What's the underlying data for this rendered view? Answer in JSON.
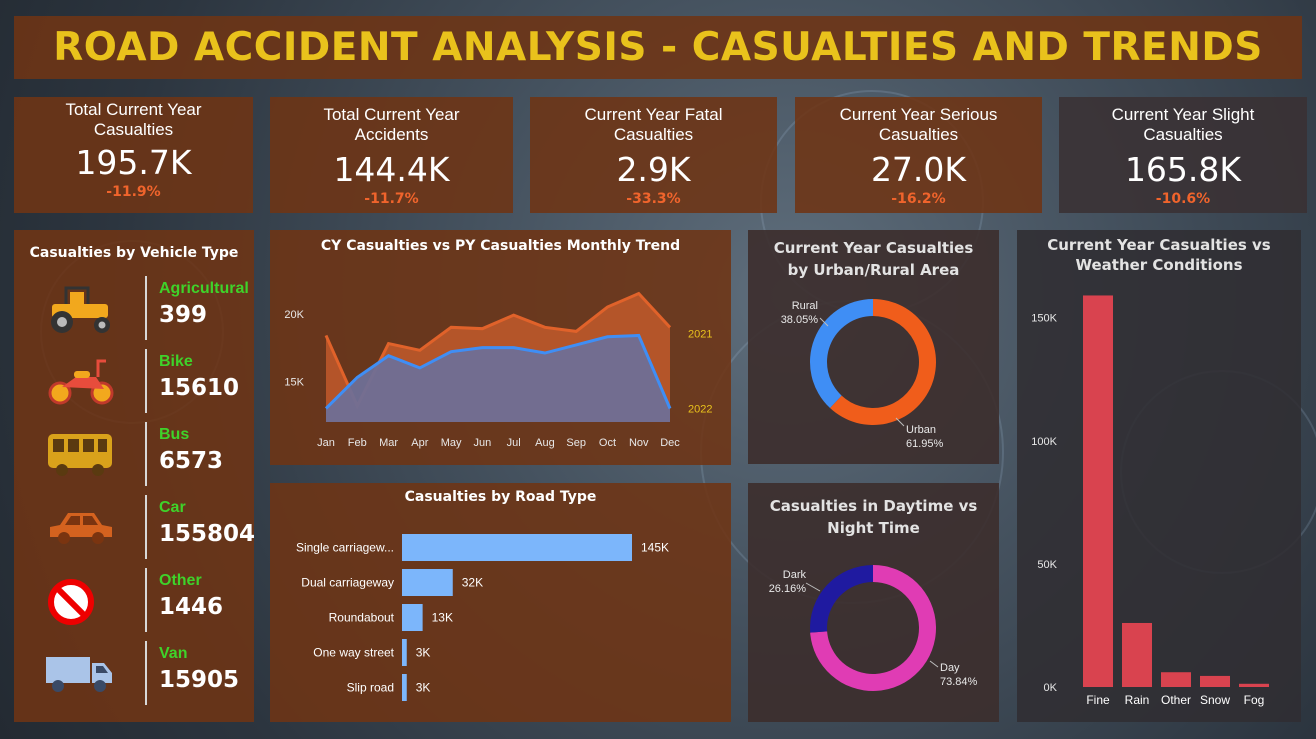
{
  "header": {
    "title": "ROAD ACCIDENT ANALYSIS - CASUALTIES AND TRENDS"
  },
  "kpis": [
    {
      "label": "Total Current Year Casualties",
      "value": "195.7K",
      "change": "-11.9%"
    },
    {
      "label": "Total Current Year Accidents",
      "value": "144.4K",
      "change": "-11.7%"
    },
    {
      "label": "Current Year Fatal Casualties",
      "value": "2.9K",
      "change": "-33.3%"
    },
    {
      "label": "Current Year Serious Casualties",
      "value": "27.0K",
      "change": "-16.2%"
    },
    {
      "label": "Current Year Slight Casualties",
      "value": "165.8K",
      "change": "-10.6%"
    }
  ],
  "vehicle_panel": {
    "title": "Casualties by Vehicle Type",
    "items": [
      {
        "name": "Agricultural",
        "value": "399",
        "icon": "tractor-icon"
      },
      {
        "name": "Bike",
        "value": "15610",
        "icon": "motorbike-icon"
      },
      {
        "name": "Bus",
        "value": "6573",
        "icon": "bus-icon"
      },
      {
        "name": "Car",
        "value": "155804",
        "icon": "car-icon"
      },
      {
        "name": "Other",
        "value": "1446",
        "icon": "prohibited-icon"
      },
      {
        "name": "Van",
        "value": "15905",
        "icon": "van-icon"
      }
    ],
    "name_color": "#3fd22a"
  },
  "chart_data": [
    {
      "id": "monthly",
      "type": "area",
      "title": "CY Casualties vs PY Casualties Monthly Trend",
      "categories": [
        "Jan",
        "Feb",
        "Mar",
        "Apr",
        "May",
        "Jun",
        "Jul",
        "Aug",
        "Sep",
        "Oct",
        "Nov",
        "Dec"
      ],
      "series": [
        {
          "name": "2021",
          "values": [
            18400,
            13200,
            17800,
            17300,
            19000,
            18900,
            19900,
            19000,
            18700,
            20500,
            21500,
            19000
          ],
          "color": "#e0622a"
        },
        {
          "name": "2022",
          "values": [
            13000,
            15300,
            16900,
            16000,
            17200,
            17500,
            17500,
            17100,
            17700,
            18300,
            18400,
            13000
          ],
          "color": "#3f8ef5"
        }
      ],
      "ylim": [
        12000,
        22500
      ],
      "yticks": [
        15000,
        20000
      ],
      "ytick_labels": [
        "15K",
        "20K"
      ]
    },
    {
      "id": "urban",
      "type": "pie",
      "title": "Current Year Casualties by Urban/Rural Area",
      "labels": [
        "Urban",
        "Rural"
      ],
      "values": [
        61.95,
        38.05
      ],
      "value_labels": [
        "61.95%",
        "38.05%"
      ],
      "colors": [
        "#f05d1b",
        "#3f8ef5"
      ]
    },
    {
      "id": "road",
      "type": "bar",
      "title": "Casualties by Road Type",
      "categories": [
        "Single carriagew...",
        "Dual carriageway",
        "Roundabout",
        "One way street",
        "Slip road"
      ],
      "values": [
        145000,
        32000,
        13000,
        3000,
        3000
      ],
      "value_labels": [
        "145K",
        "32K",
        "13K",
        "3K",
        "3K"
      ],
      "color": "#7cb6fb"
    },
    {
      "id": "daynight",
      "type": "pie",
      "title": "Casualties in Daytime vs Night Time",
      "labels": [
        "Day",
        "Dark"
      ],
      "values": [
        73.84,
        26.16
      ],
      "value_labels": [
        "73.84%",
        "26.16%"
      ],
      "colors": [
        "#e03cb4",
        "#1f1aa0"
      ]
    },
    {
      "id": "weather",
      "type": "bar",
      "title": "Current Year Casualties vs Weather Conditions",
      "categories": [
        "Fine",
        "Rain",
        "Other",
        "Snow",
        "Fog"
      ],
      "values": [
        159000,
        26000,
        6000,
        4500,
        1300
      ],
      "ylim": [
        0,
        160000
      ],
      "yticks": [
        0,
        50000,
        100000,
        150000
      ],
      "ytick_labels": [
        "0K",
        "50K",
        "100K",
        "150K"
      ],
      "color": "#d9434f"
    }
  ]
}
